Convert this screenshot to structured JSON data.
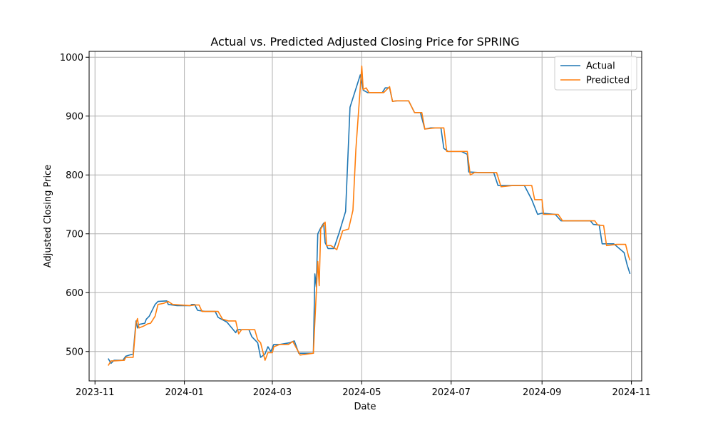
{
  "chart_data": {
    "type": "line",
    "title": "Actual vs. Predicted Adjusted Closing Price for SPRING",
    "xlabel": "Date",
    "ylabel": "Adjusted Closing Price",
    "xlim": [
      "2023-10-28",
      "2024-11-08"
    ],
    "ylim": [
      450,
      1010
    ],
    "x_ticks": [
      "2023-11-01",
      "2024-01-01",
      "2024-03-01",
      "2024-05-01",
      "2024-07-01",
      "2024-09-01",
      "2024-11-01"
    ],
    "x_tick_labels": [
      "2023-11",
      "2024-01",
      "2024-03",
      "2024-05",
      "2024-07",
      "2024-09",
      "2024-11"
    ],
    "y_ticks": [
      500,
      600,
      700,
      800,
      900,
      1000
    ],
    "y_tick_labels": [
      "500",
      "600",
      "700",
      "800",
      "900",
      "1000"
    ],
    "grid": true,
    "legend_position": "top-right",
    "series": [
      {
        "name": "Actual",
        "color": "#1f77b4",
        "points": [
          [
            "2023-11-10",
            488
          ],
          [
            "2023-11-12",
            480
          ],
          [
            "2023-11-14",
            485
          ],
          [
            "2023-11-20",
            485
          ],
          [
            "2023-11-22",
            492
          ],
          [
            "2023-11-27",
            496
          ],
          [
            "2023-11-29",
            552
          ],
          [
            "2023-11-30",
            540
          ],
          [
            "2023-12-01",
            546
          ],
          [
            "2023-12-05",
            548
          ],
          [
            "2023-12-06",
            555
          ],
          [
            "2023-12-08",
            560
          ],
          [
            "2023-12-12",
            580
          ],
          [
            "2023-12-14",
            585
          ],
          [
            "2023-12-20",
            586
          ],
          [
            "2023-12-21",
            580
          ],
          [
            "2023-12-27",
            578
          ],
          [
            "2024-01-05",
            578
          ],
          [
            "2024-01-06",
            580
          ],
          [
            "2024-01-08",
            580
          ],
          [
            "2024-01-10",
            570
          ],
          [
            "2024-01-15",
            568
          ],
          [
            "2024-01-22",
            568
          ],
          [
            "2024-01-24",
            558
          ],
          [
            "2024-01-30",
            550
          ],
          [
            "2024-02-05",
            532
          ],
          [
            "2024-02-06",
            537
          ],
          [
            "2024-02-14",
            537
          ],
          [
            "2024-02-16",
            525
          ],
          [
            "2024-02-20",
            515
          ],
          [
            "2024-02-22",
            490
          ],
          [
            "2024-02-25",
            496
          ],
          [
            "2024-02-27",
            508
          ],
          [
            "2024-02-29",
            500
          ],
          [
            "2024-03-02",
            512
          ],
          [
            "2024-03-06",
            512
          ],
          [
            "2024-03-13",
            515
          ],
          [
            "2024-03-16",
            518
          ],
          [
            "2024-03-19",
            497
          ],
          [
            "2024-03-29",
            497
          ],
          [
            "2024-03-30",
            632
          ],
          [
            "2024-03-31",
            610
          ],
          [
            "2024-04-01",
            700
          ],
          [
            "2024-04-03",
            710
          ],
          [
            "2024-04-05",
            718
          ],
          [
            "2024-04-06",
            685
          ],
          [
            "2024-04-08",
            675
          ],
          [
            "2024-04-12",
            675
          ],
          [
            "2024-04-16",
            705
          ],
          [
            "2024-04-20",
            738
          ],
          [
            "2024-04-23",
            915
          ],
          [
            "2024-04-30",
            970
          ],
          [
            "2024-05-02",
            944
          ],
          [
            "2024-05-05",
            940
          ],
          [
            "2024-05-15",
            940
          ],
          [
            "2024-05-17",
            948
          ],
          [
            "2024-05-20",
            948
          ],
          [
            "2024-05-22",
            925
          ],
          [
            "2024-05-25",
            926
          ],
          [
            "2024-06-02",
            926
          ],
          [
            "2024-06-06",
            906
          ],
          [
            "2024-06-10",
            906
          ],
          [
            "2024-06-13",
            878
          ],
          [
            "2024-06-17",
            880
          ],
          [
            "2024-06-24",
            880
          ],
          [
            "2024-06-26",
            845
          ],
          [
            "2024-06-29",
            840
          ],
          [
            "2024-07-08",
            840
          ],
          [
            "2024-07-12",
            835
          ],
          [
            "2024-07-13",
            805
          ],
          [
            "2024-07-20",
            804
          ],
          [
            "2024-07-30",
            804
          ],
          [
            "2024-08-02",
            782
          ],
          [
            "2024-08-10",
            782
          ],
          [
            "2024-08-20",
            782
          ],
          [
            "2024-08-25",
            758
          ],
          [
            "2024-08-29",
            733
          ],
          [
            "2024-09-01",
            735
          ],
          [
            "2024-09-10",
            733
          ],
          [
            "2024-09-14",
            722
          ],
          [
            "2024-09-20",
            722
          ],
          [
            "2024-10-04",
            722
          ],
          [
            "2024-10-06",
            716
          ],
          [
            "2024-10-10",
            715
          ],
          [
            "2024-10-12",
            683
          ],
          [
            "2024-10-20",
            683
          ],
          [
            "2024-10-27",
            668
          ],
          [
            "2024-10-29",
            648
          ],
          [
            "2024-10-31",
            632
          ]
        ]
      },
      {
        "name": "Predicted",
        "color": "#ff7f0e",
        "points": [
          [
            "2023-11-10",
            476
          ],
          [
            "2023-11-12",
            484
          ],
          [
            "2023-11-14",
            484
          ],
          [
            "2023-11-21",
            485
          ],
          [
            "2023-11-22",
            490
          ],
          [
            "2023-11-27",
            490
          ],
          [
            "2023-11-29",
            548
          ],
          [
            "2023-11-30",
            556
          ],
          [
            "2023-12-01",
            540
          ],
          [
            "2023-12-04",
            543
          ],
          [
            "2023-12-07",
            547
          ],
          [
            "2023-12-09",
            548
          ],
          [
            "2023-12-12",
            560
          ],
          [
            "2023-12-14",
            580
          ],
          [
            "2023-12-18",
            582
          ],
          [
            "2023-12-21",
            585
          ],
          [
            "2023-12-24",
            580
          ],
          [
            "2024-01-05",
            578
          ],
          [
            "2024-01-08",
            579
          ],
          [
            "2024-01-11",
            579
          ],
          [
            "2024-01-13",
            568
          ],
          [
            "2024-01-24",
            568
          ],
          [
            "2024-01-27",
            555
          ],
          [
            "2024-01-31",
            552
          ],
          [
            "2024-02-05",
            552
          ],
          [
            "2024-02-07",
            530
          ],
          [
            "2024-02-09",
            537
          ],
          [
            "2024-02-18",
            537
          ],
          [
            "2024-02-20",
            520
          ],
          [
            "2024-02-22",
            515
          ],
          [
            "2024-02-25",
            485
          ],
          [
            "2024-02-27",
            498
          ],
          [
            "2024-03-01",
            498
          ],
          [
            "2024-03-02",
            508
          ],
          [
            "2024-03-06",
            512
          ],
          [
            "2024-03-12",
            512
          ],
          [
            "2024-03-15",
            517
          ],
          [
            "2024-03-20",
            494
          ],
          [
            "2024-03-29",
            497
          ],
          [
            "2024-04-01",
            653
          ],
          [
            "2024-04-02",
            612
          ],
          [
            "2024-04-03",
            708
          ],
          [
            "2024-04-06",
            720
          ],
          [
            "2024-04-07",
            680
          ],
          [
            "2024-04-10",
            680
          ],
          [
            "2024-04-14",
            673
          ],
          [
            "2024-04-18",
            705
          ],
          [
            "2024-04-22",
            708
          ],
          [
            "2024-04-25",
            740
          ],
          [
            "2024-04-27",
            843
          ],
          [
            "2024-05-01",
            985
          ],
          [
            "2024-05-02",
            945
          ],
          [
            "2024-05-04",
            948
          ],
          [
            "2024-05-06",
            940
          ],
          [
            "2024-05-16",
            940
          ],
          [
            "2024-05-20",
            950
          ],
          [
            "2024-05-22",
            925
          ],
          [
            "2024-05-25",
            926
          ],
          [
            "2024-06-02",
            926
          ],
          [
            "2024-06-06",
            906
          ],
          [
            "2024-06-11",
            906
          ],
          [
            "2024-06-13",
            878
          ],
          [
            "2024-06-20",
            880
          ],
          [
            "2024-06-26",
            880
          ],
          [
            "2024-06-28",
            840
          ],
          [
            "2024-07-05",
            840
          ],
          [
            "2024-07-12",
            840
          ],
          [
            "2024-07-14",
            800
          ],
          [
            "2024-07-17",
            804
          ],
          [
            "2024-07-24",
            804
          ],
          [
            "2024-08-01",
            804
          ],
          [
            "2024-08-04",
            780
          ],
          [
            "2024-08-12",
            782
          ],
          [
            "2024-08-25",
            782
          ],
          [
            "2024-08-27",
            758
          ],
          [
            "2024-09-01",
            758
          ],
          [
            "2024-09-02",
            733
          ],
          [
            "2024-09-12",
            733
          ],
          [
            "2024-09-15",
            722
          ],
          [
            "2024-09-28",
            722
          ],
          [
            "2024-10-07",
            722
          ],
          [
            "2024-10-09",
            715
          ],
          [
            "2024-10-13",
            714
          ],
          [
            "2024-10-15",
            680
          ],
          [
            "2024-10-22",
            682
          ],
          [
            "2024-10-28",
            682
          ],
          [
            "2024-10-30",
            662
          ],
          [
            "2024-10-31",
            655
          ]
        ]
      }
    ]
  }
}
